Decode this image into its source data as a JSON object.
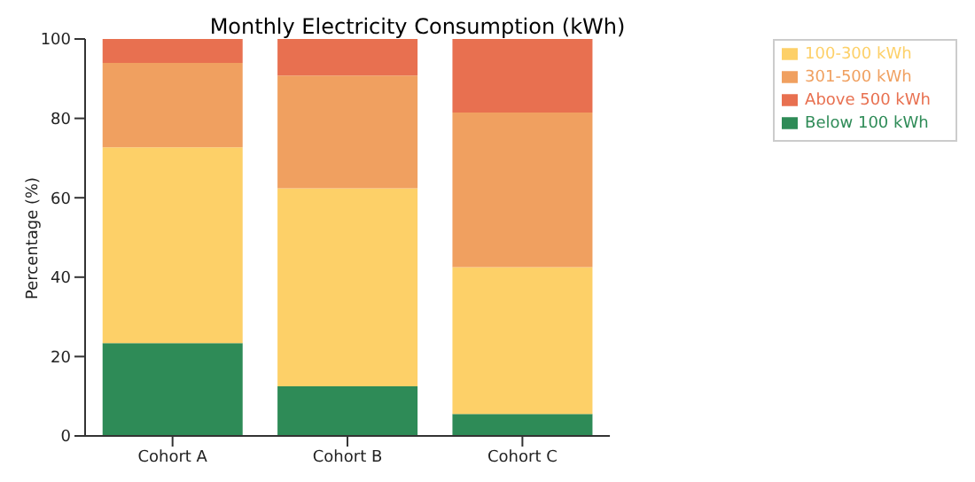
{
  "chart_data": {
    "type": "bar",
    "title": "Monthly Electricity Consumption (kWh)",
    "ylabel": "Percentage (%)",
    "categories": [
      "Cohort A",
      "Cohort B",
      "Cohort C"
    ],
    "stacked": true,
    "series": [
      {
        "name": "Below 100 kWh",
        "color": "#2e8b57",
        "values": [
          23.4,
          12.5,
          5.5
        ]
      },
      {
        "name": "100-300 kWh",
        "color": "#fdd068",
        "values": [
          49.3,
          49.9,
          37.0
        ]
      },
      {
        "name": "301-500 kWh",
        "color": "#f0a060",
        "values": [
          21.3,
          28.4,
          39.0
        ]
      },
      {
        "name": "Above 500 kWh",
        "color": "#e87050",
        "values": [
          6.0,
          9.2,
          18.5
        ]
      }
    ],
    "ylim": [
      0,
      100
    ],
    "yticks": [
      0,
      20,
      40,
      60,
      80,
      100
    ],
    "grid": false,
    "legend": "top right"
  }
}
